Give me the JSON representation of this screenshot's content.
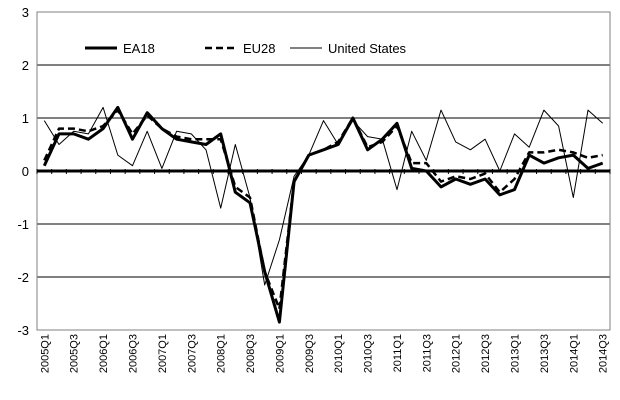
{
  "chart_data": {
    "type": "line",
    "ylim": [
      -3,
      3
    ],
    "yticks": [
      3,
      2,
      1,
      0,
      -1,
      -2,
      -3
    ],
    "grid": "horizontal",
    "legend_position": "top-left",
    "x": [
      "2005Q1",
      "2005Q2",
      "2005Q3",
      "2005Q4",
      "2006Q1",
      "2006Q2",
      "2006Q3",
      "2006Q4",
      "2007Q1",
      "2007Q2",
      "2007Q3",
      "2007Q4",
      "2008Q1",
      "2008Q2",
      "2008Q3",
      "2008Q4",
      "2009Q1",
      "2009Q2",
      "2009Q3",
      "2009Q4",
      "2010Q1",
      "2010Q2",
      "2010Q3",
      "2010Q4",
      "2011Q1",
      "2011Q2",
      "2011Q3",
      "2011Q4",
      "2012Q1",
      "2012Q2",
      "2012Q3",
      "2012Q4",
      "2013Q1",
      "2013Q2",
      "2013Q3",
      "2013Q4",
      "2014Q1",
      "2014Q2",
      "2014Q3"
    ],
    "x_label_step": 2,
    "series": [
      {
        "name": "EA18",
        "color": "#000000",
        "style": "thick-solid",
        "values": [
          0.1,
          0.7,
          0.7,
          0.6,
          0.8,
          1.2,
          0.6,
          1.1,
          0.8,
          0.6,
          0.55,
          0.5,
          0.7,
          -0.4,
          -0.6,
          -1.9,
          -2.85,
          -0.2,
          0.3,
          0.4,
          0.5,
          1.0,
          0.4,
          0.6,
          0.9,
          0.05,
          0.0,
          -0.3,
          -0.15,
          -0.25,
          -0.15,
          -0.45,
          -0.35,
          0.3,
          0.15,
          0.25,
          0.3,
          0.05,
          0.15
        ]
      },
      {
        "name": "EU28",
        "color": "#000000",
        "style": "dashed",
        "values": [
          0.2,
          0.8,
          0.8,
          0.75,
          0.85,
          1.15,
          0.7,
          1.05,
          0.8,
          0.65,
          0.6,
          0.6,
          0.6,
          -0.3,
          -0.5,
          -1.9,
          -2.6,
          -0.2,
          0.3,
          0.4,
          0.55,
          1.0,
          0.45,
          0.55,
          0.85,
          0.15,
          0.15,
          -0.2,
          -0.1,
          -0.15,
          -0.05,
          -0.4,
          -0.15,
          0.35,
          0.35,
          0.4,
          0.35,
          0.25,
          0.3
        ]
      },
      {
        "name": "United States",
        "color": "#000000",
        "style": "thin-solid",
        "values": [
          0.95,
          0.5,
          0.75,
          0.7,
          1.2,
          0.3,
          0.1,
          0.75,
          0.05,
          0.75,
          0.7,
          0.4,
          -0.7,
          0.5,
          -0.5,
          -2.15,
          -1.3,
          -0.1,
          0.3,
          0.95,
          0.5,
          0.95,
          0.65,
          0.6,
          -0.35,
          0.75,
          0.2,
          1.15,
          0.55,
          0.4,
          0.6,
          0.0,
          0.7,
          0.45,
          1.15,
          0.85,
          -0.5,
          1.15,
          0.9
        ]
      }
    ]
  }
}
